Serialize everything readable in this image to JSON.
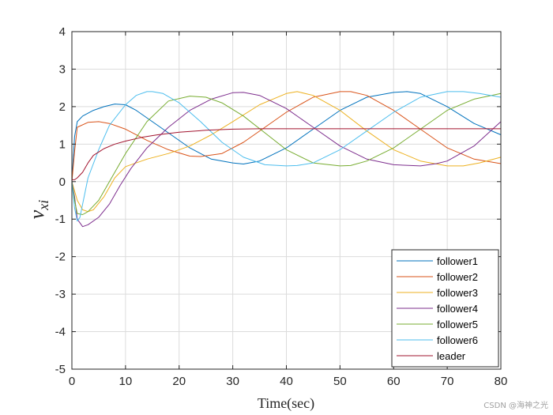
{
  "chart_data": {
    "type": "line",
    "xlabel": "Time(sec)",
    "ylabel": "v",
    "ylabel_subscript": "xi",
    "xlim": [
      0,
      80
    ],
    "ylim": [
      -5,
      4
    ],
    "xticks": [
      0,
      10,
      20,
      30,
      40,
      50,
      60,
      70,
      80
    ],
    "yticks": [
      -5,
      -4,
      -3,
      -2,
      -1,
      0,
      1,
      2,
      3,
      4
    ],
    "grid": true,
    "legend_position": "bottom-right",
    "series": [
      {
        "name": "follower1",
        "color": "#0072BD",
        "x": [
          0,
          0.5,
          1,
          2,
          4,
          6,
          8,
          10,
          12,
          15,
          18,
          22,
          26,
          30,
          32,
          35,
          40,
          45,
          50,
          55,
          60,
          62.5,
          65,
          70,
          75,
          80
        ],
        "y": [
          0,
          1.2,
          1.6,
          1.75,
          1.9,
          2.0,
          2.07,
          2.05,
          1.9,
          1.6,
          1.3,
          0.9,
          0.6,
          0.5,
          0.47,
          0.55,
          0.9,
          1.4,
          1.9,
          2.25,
          2.38,
          2.4,
          2.35,
          2.0,
          1.55,
          1.25
        ]
      },
      {
        "name": "follower2",
        "color": "#D95319",
        "x": [
          0,
          0.5,
          1,
          3,
          5,
          7,
          10,
          14,
          18,
          22,
          24,
          28,
          32,
          36,
          40,
          45,
          50,
          52,
          55,
          60,
          65,
          70,
          75,
          80
        ],
        "y": [
          0,
          0.8,
          1.45,
          1.58,
          1.6,
          1.55,
          1.4,
          1.1,
          0.85,
          0.68,
          0.67,
          0.75,
          1.05,
          1.45,
          1.85,
          2.25,
          2.4,
          2.4,
          2.3,
          1.9,
          1.4,
          0.9,
          0.6,
          0.48
        ]
      },
      {
        "name": "follower3",
        "color": "#EDB120",
        "x": [
          0,
          1,
          2,
          3,
          4,
          6,
          8,
          10,
          14,
          18,
          22,
          26,
          30,
          35,
          40,
          42,
          45,
          50,
          55,
          60,
          65,
          70,
          73,
          76,
          80
        ],
        "y": [
          0,
          -0.5,
          -0.75,
          -0.8,
          -0.75,
          -0.4,
          0.1,
          0.4,
          0.6,
          0.75,
          0.95,
          1.25,
          1.6,
          2.05,
          2.35,
          2.4,
          2.3,
          1.9,
          1.35,
          0.85,
          0.55,
          0.42,
          0.42,
          0.5,
          0.65
        ]
      },
      {
        "name": "follower4",
        "color": "#7E2F8E",
        "x": [
          0,
          0.5,
          1,
          2,
          3,
          5,
          7,
          9,
          11,
          14,
          18,
          22,
          26,
          30,
          32,
          35,
          40,
          45,
          50,
          55,
          60,
          65,
          68,
          70,
          75,
          80
        ],
        "y": [
          0,
          -0.4,
          -1.0,
          -1.2,
          -1.15,
          -0.95,
          -0.6,
          -0.1,
          0.35,
          0.9,
          1.45,
          1.9,
          2.2,
          2.37,
          2.38,
          2.3,
          1.95,
          1.45,
          0.95,
          0.6,
          0.45,
          0.42,
          0.48,
          0.55,
          0.95,
          1.6
        ]
      },
      {
        "name": "follower5",
        "color": "#77AC30",
        "x": [
          0,
          0.5,
          1,
          2,
          3,
          5,
          7,
          10,
          14,
          18,
          22,
          25,
          28,
          32,
          36,
          40,
          45,
          50,
          52,
          55,
          60,
          65,
          70,
          75,
          80
        ],
        "y": [
          0,
          -0.5,
          -0.85,
          -0.88,
          -0.8,
          -0.5,
          0,
          0.75,
          1.6,
          2.15,
          2.28,
          2.25,
          2.1,
          1.75,
          1.3,
          0.85,
          0.5,
          0.42,
          0.43,
          0.55,
          0.9,
          1.4,
          1.9,
          2.2,
          2.35
        ]
      },
      {
        "name": "follower6",
        "color": "#4DBEEE",
        "x": [
          0,
          0.5,
          1,
          1.5,
          2,
          3,
          5,
          7,
          10,
          12,
          14,
          15,
          17,
          20,
          24,
          28,
          32,
          36,
          40,
          42,
          45,
          50,
          55,
          60,
          65,
          70,
          73,
          76,
          80
        ],
        "y": [
          0,
          -0.7,
          -1.05,
          -0.95,
          -0.6,
          0.1,
          0.85,
          1.5,
          2.05,
          2.3,
          2.4,
          2.4,
          2.35,
          2.1,
          1.6,
          1.05,
          0.65,
          0.45,
          0.42,
          0.43,
          0.5,
          0.85,
          1.35,
          1.85,
          2.25,
          2.4,
          2.4,
          2.35,
          2.25
        ]
      },
      {
        "name": "leader",
        "color": "#A2142F",
        "x": [
          0,
          0.5,
          1,
          2,
          3,
          4,
          6,
          8,
          10,
          13,
          16,
          20,
          25,
          30,
          35,
          40,
          50,
          60,
          70,
          80
        ],
        "y": [
          0.05,
          0.05,
          0.1,
          0.25,
          0.5,
          0.7,
          0.88,
          1.0,
          1.08,
          1.18,
          1.25,
          1.32,
          1.37,
          1.4,
          1.41,
          1.41,
          1.41,
          1.41,
          1.41,
          1.41
        ]
      }
    ]
  },
  "watermark": "CSDN @海神之光"
}
